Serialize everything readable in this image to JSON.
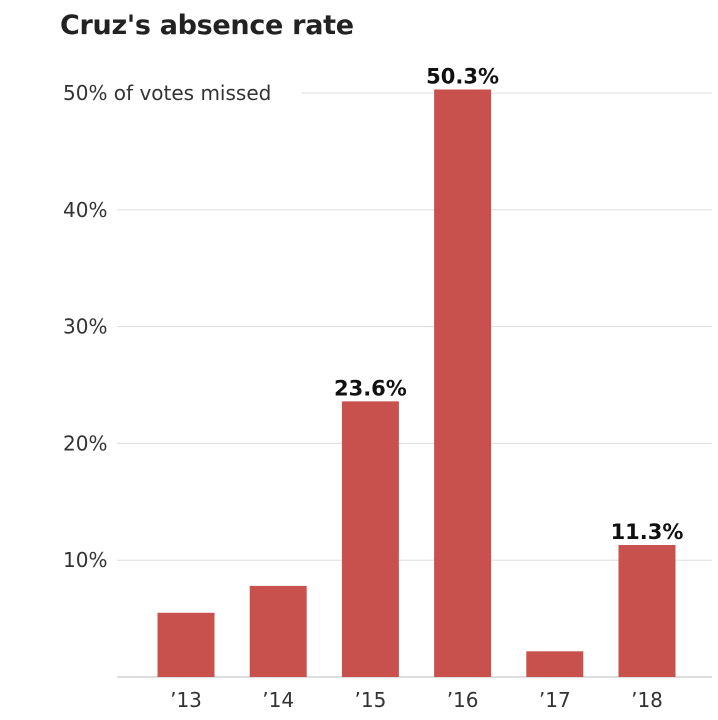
{
  "chart_data": {
    "type": "bar",
    "title": "Cruz's absence rate",
    "xlabel": "",
    "ylabel": "",
    "categories": [
      "’13",
      "’14",
      "’15",
      "’16",
      "’17",
      "’18"
    ],
    "values": [
      5.5,
      7.8,
      23.6,
      50.3,
      2.2,
      11.3
    ],
    "data_labels": [
      "",
      "",
      "23.6%",
      "50.3%",
      "",
      "11.3%"
    ],
    "ylim": [
      0,
      50
    ],
    "y_ticks": [
      {
        "value": 10,
        "label": "10%"
      },
      {
        "value": 20,
        "label": "20%"
      },
      {
        "value": 30,
        "label": "30%"
      },
      {
        "value": 40,
        "label": "40%"
      },
      {
        "value": 50,
        "label": "50% of votes missed"
      }
    ],
    "grid": true,
    "bar_color": "#c9514d"
  }
}
